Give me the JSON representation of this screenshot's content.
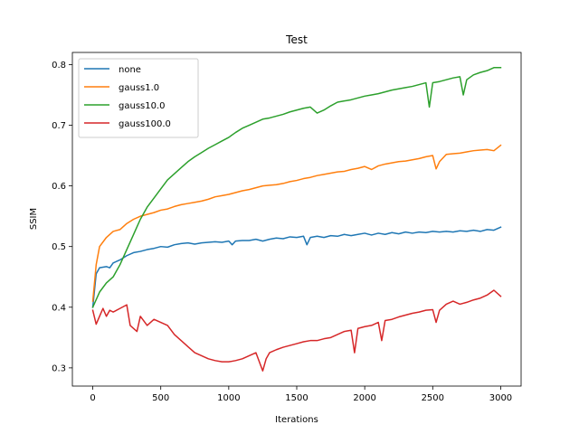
{
  "chart_data": {
    "type": "line",
    "title": "Test",
    "xlabel": "Iterations",
    "ylabel": "SSIM",
    "xlim": [
      -150,
      3150
    ],
    "ylim": [
      0.27,
      0.82
    ],
    "xticks": [
      0,
      500,
      1000,
      1500,
      2000,
      2500,
      3000
    ],
    "xtick_labels": [
      "0",
      "500",
      "1000",
      "1500",
      "2000",
      "2500",
      "3000"
    ],
    "yticks": [
      0.3,
      0.4,
      0.5,
      0.6,
      0.7,
      0.8
    ],
    "ytick_labels": [
      "0.3",
      "0.4",
      "0.5",
      "0.6",
      "0.7",
      "0.8"
    ],
    "grid": false,
    "legend_position": "upper-left",
    "series": [
      {
        "name": "none",
        "color": "#1f77b4",
        "points": [
          [
            0,
            0.4
          ],
          [
            25,
            0.455
          ],
          [
            50,
            0.465
          ],
          [
            100,
            0.467
          ],
          [
            125,
            0.465
          ],
          [
            150,
            0.473
          ],
          [
            200,
            0.478
          ],
          [
            250,
            0.485
          ],
          [
            300,
            0.49
          ],
          [
            350,
            0.492
          ],
          [
            400,
            0.495
          ],
          [
            450,
            0.497
          ],
          [
            500,
            0.5
          ],
          [
            550,
            0.499
          ],
          [
            600,
            0.503
          ],
          [
            650,
            0.505
          ],
          [
            700,
            0.506
          ],
          [
            750,
            0.504
          ],
          [
            800,
            0.506
          ],
          [
            850,
            0.507
          ],
          [
            900,
            0.508
          ],
          [
            950,
            0.507
          ],
          [
            1000,
            0.509
          ],
          [
            1025,
            0.503
          ],
          [
            1050,
            0.509
          ],
          [
            1100,
            0.51
          ],
          [
            1150,
            0.51
          ],
          [
            1200,
            0.512
          ],
          [
            1250,
            0.509
          ],
          [
            1300,
            0.512
          ],
          [
            1350,
            0.514
          ],
          [
            1400,
            0.513
          ],
          [
            1450,
            0.516
          ],
          [
            1500,
            0.515
          ],
          [
            1550,
            0.517
          ],
          [
            1575,
            0.503
          ],
          [
            1600,
            0.515
          ],
          [
            1650,
            0.517
          ],
          [
            1700,
            0.515
          ],
          [
            1750,
            0.518
          ],
          [
            1800,
            0.517
          ],
          [
            1850,
            0.52
          ],
          [
            1900,
            0.518
          ],
          [
            1950,
            0.52
          ],
          [
            2000,
            0.522
          ],
          [
            2050,
            0.519
          ],
          [
            2100,
            0.522
          ],
          [
            2150,
            0.52
          ],
          [
            2200,
            0.523
          ],
          [
            2250,
            0.521
          ],
          [
            2300,
            0.524
          ],
          [
            2350,
            0.522
          ],
          [
            2400,
            0.524
          ],
          [
            2450,
            0.523
          ],
          [
            2500,
            0.525
          ],
          [
            2550,
            0.524
          ],
          [
            2600,
            0.525
          ],
          [
            2650,
            0.524
          ],
          [
            2700,
            0.526
          ],
          [
            2750,
            0.525
          ],
          [
            2800,
            0.527
          ],
          [
            2850,
            0.525
          ],
          [
            2900,
            0.528
          ],
          [
            2950,
            0.527
          ],
          [
            3000,
            0.532
          ]
        ]
      },
      {
        "name": "gauss1.0",
        "color": "#ff7f0e",
        "points": [
          [
            0,
            0.41
          ],
          [
            25,
            0.47
          ],
          [
            50,
            0.5
          ],
          [
            100,
            0.515
          ],
          [
            150,
            0.525
          ],
          [
            200,
            0.528
          ],
          [
            250,
            0.538
          ],
          [
            300,
            0.545
          ],
          [
            350,
            0.55
          ],
          [
            400,
            0.553
          ],
          [
            450,
            0.556
          ],
          [
            500,
            0.56
          ],
          [
            550,
            0.562
          ],
          [
            600,
            0.566
          ],
          [
            650,
            0.569
          ],
          [
            700,
            0.571
          ],
          [
            750,
            0.573
          ],
          [
            800,
            0.575
          ],
          [
            850,
            0.578
          ],
          [
            900,
            0.582
          ],
          [
            950,
            0.584
          ],
          [
            1000,
            0.586
          ],
          [
            1050,
            0.589
          ],
          [
            1100,
            0.592
          ],
          [
            1150,
            0.594
          ],
          [
            1200,
            0.597
          ],
          [
            1250,
            0.6
          ],
          [
            1300,
            0.601
          ],
          [
            1350,
            0.602
          ],
          [
            1400,
            0.604
          ],
          [
            1450,
            0.607
          ],
          [
            1500,
            0.609
          ],
          [
            1550,
            0.612
          ],
          [
            1600,
            0.614
          ],
          [
            1650,
            0.617
          ],
          [
            1700,
            0.619
          ],
          [
            1750,
            0.621
          ],
          [
            1800,
            0.623
          ],
          [
            1850,
            0.624
          ],
          [
            1900,
            0.627
          ],
          [
            1950,
            0.629
          ],
          [
            2000,
            0.632
          ],
          [
            2050,
            0.627
          ],
          [
            2100,
            0.633
          ],
          [
            2150,
            0.636
          ],
          [
            2200,
            0.638
          ],
          [
            2250,
            0.64
          ],
          [
            2300,
            0.641
          ],
          [
            2350,
            0.643
          ],
          [
            2400,
            0.645
          ],
          [
            2450,
            0.648
          ],
          [
            2500,
            0.65
          ],
          [
            2525,
            0.628
          ],
          [
            2550,
            0.64
          ],
          [
            2600,
            0.652
          ],
          [
            2650,
            0.653
          ],
          [
            2700,
            0.654
          ],
          [
            2750,
            0.656
          ],
          [
            2800,
            0.658
          ],
          [
            2850,
            0.659
          ],
          [
            2900,
            0.66
          ],
          [
            2950,
            0.658
          ],
          [
            3000,
            0.667
          ]
        ]
      },
      {
        "name": "gauss10.0",
        "color": "#2ca02c",
        "points": [
          [
            0,
            0.4
          ],
          [
            50,
            0.425
          ],
          [
            100,
            0.44
          ],
          [
            150,
            0.45
          ],
          [
            200,
            0.47
          ],
          [
            250,
            0.495
          ],
          [
            300,
            0.52
          ],
          [
            350,
            0.545
          ],
          [
            400,
            0.565
          ],
          [
            450,
            0.58
          ],
          [
            500,
            0.595
          ],
          [
            550,
            0.61
          ],
          [
            600,
            0.62
          ],
          [
            650,
            0.63
          ],
          [
            700,
            0.64
          ],
          [
            750,
            0.648
          ],
          [
            800,
            0.655
          ],
          [
            850,
            0.662
          ],
          [
            900,
            0.668
          ],
          [
            950,
            0.674
          ],
          [
            1000,
            0.68
          ],
          [
            1050,
            0.688
          ],
          [
            1100,
            0.695
          ],
          [
            1150,
            0.7
          ],
          [
            1200,
            0.705
          ],
          [
            1250,
            0.71
          ],
          [
            1300,
            0.712
          ],
          [
            1350,
            0.715
          ],
          [
            1400,
            0.718
          ],
          [
            1450,
            0.722
          ],
          [
            1500,
            0.725
          ],
          [
            1550,
            0.728
          ],
          [
            1600,
            0.73
          ],
          [
            1650,
            0.72
          ],
          [
            1700,
            0.725
          ],
          [
            1750,
            0.732
          ],
          [
            1800,
            0.738
          ],
          [
            1850,
            0.74
          ],
          [
            1900,
            0.742
          ],
          [
            1950,
            0.745
          ],
          [
            2000,
            0.748
          ],
          [
            2050,
            0.75
          ],
          [
            2100,
            0.752
          ],
          [
            2150,
            0.755
          ],
          [
            2200,
            0.758
          ],
          [
            2250,
            0.76
          ],
          [
            2300,
            0.762
          ],
          [
            2350,
            0.764
          ],
          [
            2400,
            0.767
          ],
          [
            2450,
            0.77
          ],
          [
            2475,
            0.73
          ],
          [
            2500,
            0.77
          ],
          [
            2550,
            0.772
          ],
          [
            2600,
            0.775
          ],
          [
            2650,
            0.778
          ],
          [
            2700,
            0.78
          ],
          [
            2725,
            0.75
          ],
          [
            2750,
            0.775
          ],
          [
            2800,
            0.783
          ],
          [
            2850,
            0.787
          ],
          [
            2900,
            0.79
          ],
          [
            2950,
            0.795
          ],
          [
            3000,
            0.795
          ]
        ]
      },
      {
        "name": "gauss100.0",
        "color": "#d62728",
        "points": [
          [
            0,
            0.395
          ],
          [
            25,
            0.372
          ],
          [
            50,
            0.385
          ],
          [
            75,
            0.398
          ],
          [
            100,
            0.385
          ],
          [
            125,
            0.395
          ],
          [
            150,
            0.392
          ],
          [
            200,
            0.398
          ],
          [
            250,
            0.404
          ],
          [
            275,
            0.37
          ],
          [
            300,
            0.365
          ],
          [
            325,
            0.36
          ],
          [
            350,
            0.385
          ],
          [
            400,
            0.37
          ],
          [
            450,
            0.38
          ],
          [
            500,
            0.375
          ],
          [
            550,
            0.37
          ],
          [
            600,
            0.355
          ],
          [
            650,
            0.345
          ],
          [
            700,
            0.335
          ],
          [
            750,
            0.325
          ],
          [
            800,
            0.32
          ],
          [
            850,
            0.315
          ],
          [
            900,
            0.312
          ],
          [
            950,
            0.31
          ],
          [
            1000,
            0.31
          ],
          [
            1050,
            0.312
          ],
          [
            1100,
            0.315
          ],
          [
            1150,
            0.32
          ],
          [
            1200,
            0.325
          ],
          [
            1250,
            0.295
          ],
          [
            1275,
            0.315
          ],
          [
            1300,
            0.325
          ],
          [
            1350,
            0.33
          ],
          [
            1400,
            0.334
          ],
          [
            1450,
            0.337
          ],
          [
            1500,
            0.34
          ],
          [
            1550,
            0.343
          ],
          [
            1600,
            0.345
          ],
          [
            1650,
            0.345
          ],
          [
            1700,
            0.348
          ],
          [
            1750,
            0.35
          ],
          [
            1800,
            0.355
          ],
          [
            1850,
            0.36
          ],
          [
            1900,
            0.362
          ],
          [
            1925,
            0.325
          ],
          [
            1950,
            0.365
          ],
          [
            2000,
            0.368
          ],
          [
            2050,
            0.37
          ],
          [
            2100,
            0.375
          ],
          [
            2125,
            0.345
          ],
          [
            2150,
            0.378
          ],
          [
            2200,
            0.38
          ],
          [
            2250,
            0.384
          ],
          [
            2300,
            0.387
          ],
          [
            2350,
            0.39
          ],
          [
            2400,
            0.392
          ],
          [
            2450,
            0.395
          ],
          [
            2500,
            0.396
          ],
          [
            2525,
            0.375
          ],
          [
            2550,
            0.395
          ],
          [
            2600,
            0.405
          ],
          [
            2650,
            0.41
          ],
          [
            2700,
            0.405
          ],
          [
            2750,
            0.408
          ],
          [
            2800,
            0.412
          ],
          [
            2850,
            0.415
          ],
          [
            2900,
            0.42
          ],
          [
            2950,
            0.428
          ],
          [
            3000,
            0.418
          ]
        ]
      }
    ]
  }
}
